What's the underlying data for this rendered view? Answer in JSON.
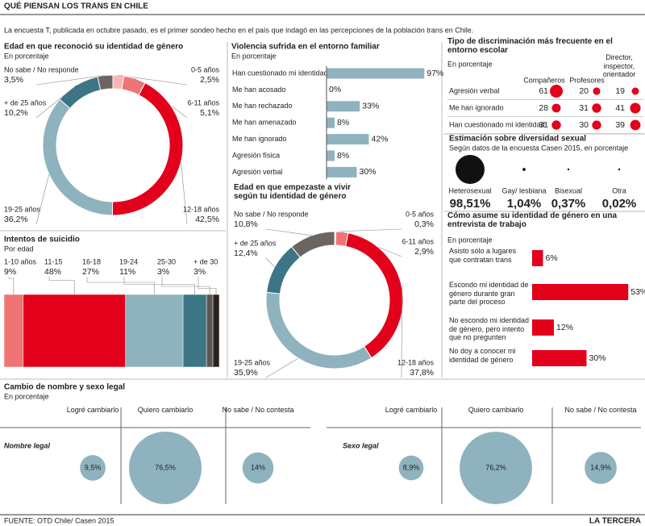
{
  "header": {
    "title": "QUÉ PIENSAN LOS TRANS EN CHILE",
    "intro": "La encuesta T, publicada en octubre pasado, es el primer sondeo hecho en el país que indagó en las percepciones de la población trans en Chile."
  },
  "chart_data": [
    {
      "type": "donut",
      "title": "Edad en que reconoció su identidad de género",
      "subtitle": "En porcentaje",
      "categories": [
        "0-5 años",
        "6-11 años",
        "12-18 años",
        "19-25 años",
        "+ de 25 años",
        "No sabe / No responde"
      ],
      "values": [
        2.5,
        5.1,
        42.5,
        36.2,
        10.2,
        3.5
      ],
      "value_labels": [
        "2,5%",
        "5,1%",
        "42,5%",
        "36,2%",
        "10,2%",
        "3,5%"
      ],
      "colors": [
        "#f7b6b4",
        "#f07474",
        "#e2001a",
        "#8fb2bf",
        "#3c7585",
        "#6b6461"
      ]
    },
    {
      "type": "hbar",
      "title": "Violencia sufrida en el entorno familiar",
      "subtitle": "En porcentaje",
      "categories": [
        "Han cuestionado mi identidad",
        "Me han acosado",
        "Me han rechazado",
        "Me han amenazado",
        "Me han ignorado",
        "Agresión física",
        "Agresión verbal"
      ],
      "values": [
        97,
        0,
        33,
        8,
        42,
        8,
        30
      ],
      "value_labels": [
        "97%",
        "0%",
        "33%",
        "8%",
        "42%",
        "8%",
        "30%"
      ],
      "color": "#8fb2bf",
      "xlim": [
        0,
        100
      ]
    },
    {
      "type": "bubble_table",
      "title": "Tipo de discriminación más frecuente en el entorno escolar",
      "subtitle": "En porcentaje",
      "categories": [
        "Compañeros",
        "Profesores",
        "Director, inspector, orientador"
      ],
      "series": [
        {
          "name": "Agresión verbal",
          "color": "#e2001a",
          "values": [
            61,
            20,
            19
          ]
        },
        {
          "name": "Me han ignorado",
          "color": "#e2001a",
          "values": [
            28,
            31,
            41
          ]
        },
        {
          "name": "Han cuestionado mi identidad",
          "color": "#e2001a",
          "values": [
            31,
            30,
            39
          ]
        }
      ]
    },
    {
      "type": "bubble_row",
      "title": "Estimación sobre diversidad sexual",
      "subtitle": "Según datos de la encuesta Casen 2015, en porcentaje",
      "categories": [
        "Heterosexual",
        "Gay/ lesbiana",
        "Bisexual",
        "Otra"
      ],
      "values": [
        98.51,
        1.04,
        0.37,
        0.02
      ],
      "value_labels": [
        "98,51%",
        "1,04%",
        "0,37%",
        "0,02%"
      ],
      "color": "#111111"
    },
    {
      "type": "stacked_bar",
      "title": "Intentos de suicidio",
      "subtitle": "Por edad",
      "categories": [
        "1-10 años",
        "11-15",
        "16-18",
        "19-24",
        "25-30",
        "+ de 30"
      ],
      "values": [
        9,
        48,
        27,
        11,
        3,
        3
      ],
      "value_labels": [
        "9%",
        "48%",
        "27%",
        "11%",
        "3%",
        "3%"
      ],
      "colors": [
        "#f07474",
        "#e2001a",
        "#8fb2bf",
        "#3c7585",
        "#5b5553",
        "#2a221d"
      ]
    },
    {
      "type": "donut",
      "title": "Edad en que empezaste a vivir según tu identidad de género",
      "categories": [
        "0-5 años",
        "6-11 años",
        "12-18 años",
        "19-25 años",
        "+ de 25 años",
        "No sabe / No responde"
      ],
      "values": [
        0.3,
        2.9,
        37.8,
        35.9,
        12.4,
        10.8
      ],
      "value_labels": [
        "0,3%",
        "2,9%",
        "37,8%",
        "35,9%",
        "12,4%",
        "10,8%"
      ],
      "colors": [
        "#f7b6b4",
        "#f07474",
        "#e2001a",
        "#8fb2bf",
        "#3c7585",
        "#6b6461"
      ]
    },
    {
      "type": "hbar",
      "title": "Cómo asume su identidad de género en una entrevista de trabajo",
      "subtitle": "En porcentaje",
      "categories": [
        "Asisto sólo a lugares que contratan trans",
        "Escondo mi identidad de género durante gran parte del proceso",
        "No escondo mi identidad de género, pero intento que no pregunten",
        "No doy a conocer mi identidad de género"
      ],
      "values": [
        6,
        53,
        12,
        30
      ],
      "value_labels": [
        "6%",
        "53%",
        "12%",
        "30%"
      ],
      "color": "#e2001a",
      "xlim": [
        0,
        60
      ]
    },
    {
      "type": "bubble_grid",
      "title": "Cambio de nombre y sexo legal",
      "subtitle": "En porcentaje",
      "categories": [
        "Logré cambiarlo",
        "Quiero cambiarlo",
        "No sabe / No contesta"
      ],
      "series": [
        {
          "name": "Nombre legal",
          "color": "#8fb2bf",
          "values": [
            9.5,
            76.5,
            14
          ],
          "value_labels": [
            "9,5%",
            "76,5%",
            "14%"
          ]
        },
        {
          "name": "Sexo legal",
          "color": "#8fb2bf",
          "values": [
            8.9,
            76.2,
            14.9
          ],
          "value_labels": [
            "8,9%",
            "76,2%",
            "14,9%"
          ]
        }
      ]
    }
  ],
  "footer": {
    "source": "FUENTE: OTD Chile/ Casen 2015",
    "brand": "LA TERCERA"
  }
}
